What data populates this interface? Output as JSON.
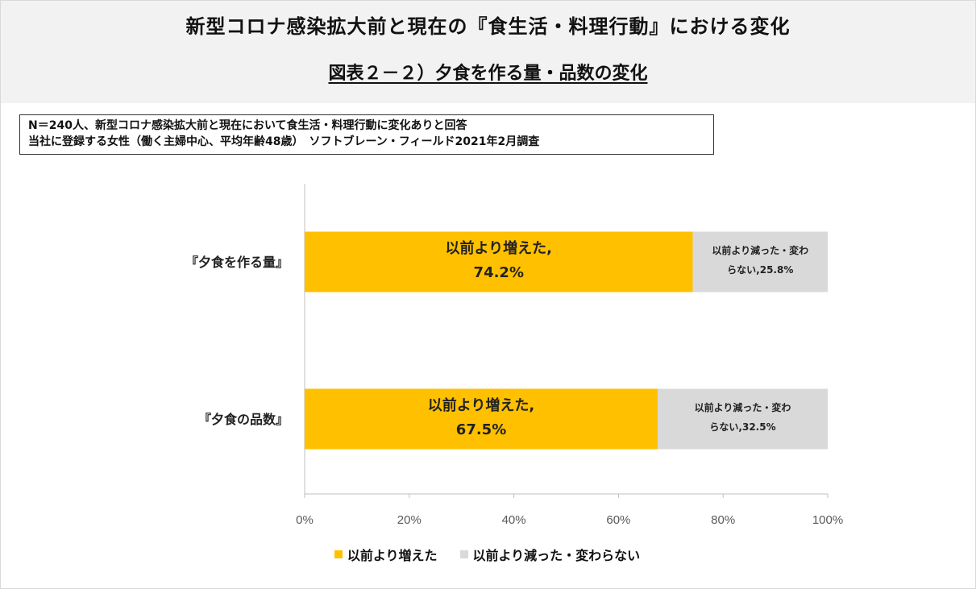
{
  "header": {
    "title": "新型コロナ感染拡大前と現在の『食生活・料理行動』における変化",
    "subtitle": "図表２－２）夕食を作る量・品数の変化"
  },
  "note": {
    "line1": "N＝240人、新型コロナ感染拡大前と現在において食生活・料理行動に変化ありと回答",
    "line2": "当社に登録する女性（働く主婦中心、平均年齢48歳）　ソフトブレーン・フィールド2021年2月調査"
  },
  "chart_data": {
    "type": "bar",
    "orientation": "horizontal",
    "stacked": true,
    "percent_stacked": true,
    "categories": [
      "『夕食を作る量』",
      "『夕食の品数』"
    ],
    "series": [
      {
        "name": "以前より増えた",
        "values": [
          74.2,
          67.5
        ],
        "color": "#FFC000",
        "data_labels": [
          [
            "以前より増えた,",
            "74.2%"
          ],
          [
            "以前より増えた,",
            "67.5%"
          ]
        ]
      },
      {
        "name": "以前より減った・変わらない",
        "values": [
          25.8,
          32.5
        ],
        "color": "#D9D9D9",
        "data_labels": [
          [
            "以前より減った・変わ",
            "らない,25.8%"
          ],
          [
            "以前より減った・変わ",
            "らない,32.5%"
          ]
        ]
      }
    ],
    "x_ticks": [
      "0%",
      "20%",
      "40%",
      "60%",
      "80%",
      "100%"
    ],
    "xlim": [
      0,
      100
    ],
    "grid": false,
    "legend_position": "bottom"
  }
}
